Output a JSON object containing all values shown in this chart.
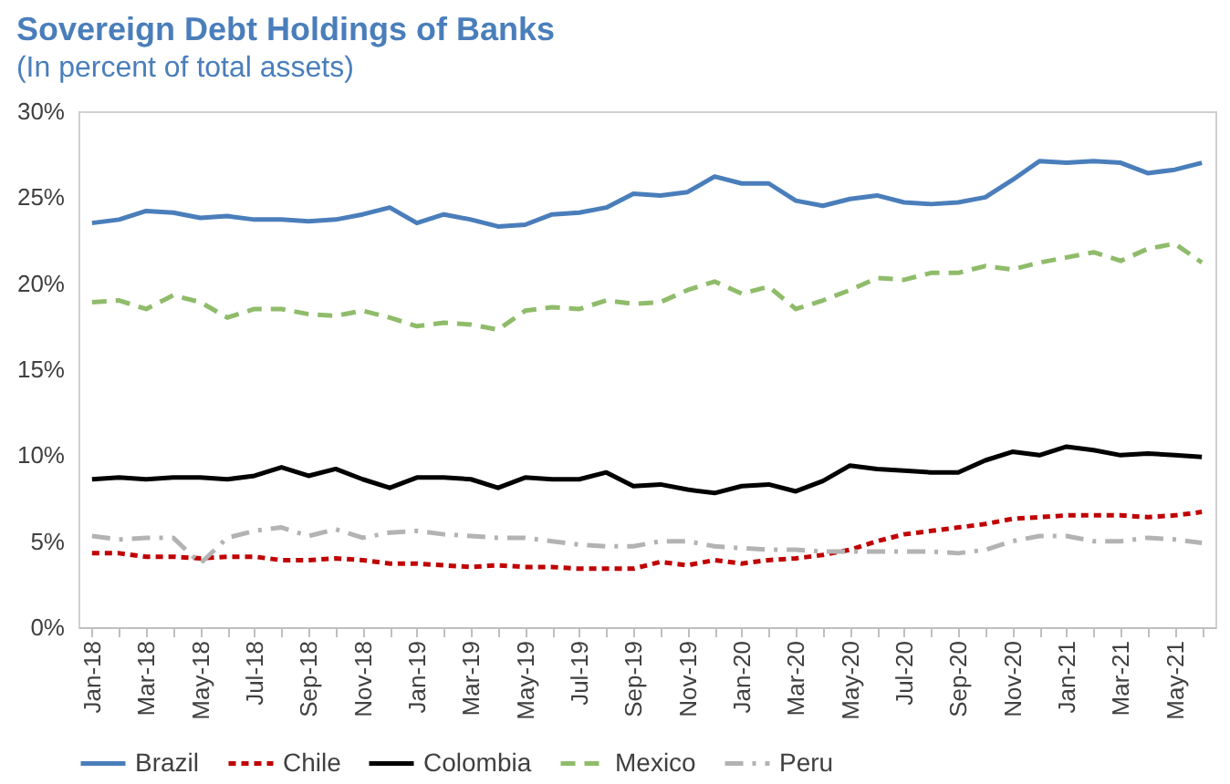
{
  "chart_data": {
    "type": "line",
    "title": "Sovereign Debt Holdings of Banks",
    "subtitle": "(In percent of total assets)",
    "categories": [
      "Jan-18",
      null,
      "Mar-18",
      null,
      "May-18",
      null,
      "Jul-18",
      null,
      "Sep-18",
      null,
      "Nov-18",
      null,
      "Jan-19",
      null,
      "Mar-19",
      null,
      "May-19",
      null,
      "Jul-19",
      null,
      "Sep-19",
      null,
      "Nov-19",
      null,
      "Jan-20",
      null,
      "Mar-20",
      null,
      "May-20",
      null,
      "Jul-20",
      null,
      "Sep-20",
      null,
      "Nov-20",
      null,
      "Jan-21",
      null,
      "Mar-21",
      null,
      "May-21",
      null
    ],
    "ylim": [
      0,
      30
    ],
    "yticks": [
      {
        "value": 0,
        "label": "0%"
      },
      {
        "value": 5,
        "label": "5%"
      },
      {
        "value": 10,
        "label": "10%"
      },
      {
        "value": 15,
        "label": "15%"
      },
      {
        "value": 20,
        "label": "20%"
      },
      {
        "value": 25,
        "label": "25%"
      },
      {
        "value": 30,
        "label": "30%"
      }
    ],
    "grid": false,
    "legend": "bottom",
    "series": [
      {
        "name": "Brazil",
        "color": "#4a7ebb",
        "line_style": "solid",
        "values": [
          23.5,
          23.7,
          24.2,
          24.1,
          23.8,
          23.9,
          23.7,
          23.7,
          23.6,
          23.7,
          24.0,
          24.4,
          23.5,
          24.0,
          23.7,
          23.3,
          23.4,
          24.0,
          24.1,
          24.4,
          25.2,
          25.1,
          25.3,
          26.2,
          25.8,
          25.8,
          24.8,
          24.5,
          24.9,
          25.1,
          24.7,
          24.6,
          24.7,
          25.0,
          26.0,
          27.1,
          27.0,
          27.1,
          27.0,
          26.4,
          26.6,
          27.0
        ]
      },
      {
        "name": "Chile",
        "color": "#c00000",
        "line_style": "dotted",
        "values": [
          4.3,
          4.3,
          4.1,
          4.1,
          4.0,
          4.1,
          4.1,
          3.9,
          3.9,
          4.0,
          3.9,
          3.7,
          3.7,
          3.6,
          3.5,
          3.6,
          3.5,
          3.5,
          3.4,
          3.4,
          3.4,
          3.8,
          3.6,
          3.9,
          3.7,
          3.9,
          4.0,
          4.2,
          4.5,
          5.0,
          5.4,
          5.6,
          5.8,
          6.0,
          6.3,
          6.4,
          6.5,
          6.5,
          6.5,
          6.4,
          6.5,
          6.7
        ]
      },
      {
        "name": "Colombia",
        "color": "#000000",
        "line_style": "solid",
        "values": [
          8.6,
          8.7,
          8.6,
          8.7,
          8.7,
          8.6,
          8.8,
          9.3,
          8.8,
          9.2,
          8.6,
          8.1,
          8.7,
          8.7,
          8.6,
          8.1,
          8.7,
          8.6,
          8.6,
          9.0,
          8.2,
          8.3,
          8.0,
          7.8,
          8.2,
          8.3,
          7.9,
          8.5,
          9.4,
          9.2,
          9.1,
          9.0,
          9.0,
          9.7,
          10.2,
          10.0,
          10.5,
          10.3,
          10.0,
          10.1,
          10.0,
          9.9
        ]
      },
      {
        "name": "Mexico",
        "color": "#8fbc6a",
        "line_style": "dashed",
        "values": [
          18.9,
          19.0,
          18.5,
          19.3,
          18.9,
          18.0,
          18.5,
          18.5,
          18.2,
          18.1,
          18.4,
          18.0,
          17.5,
          17.7,
          17.6,
          17.3,
          18.4,
          18.6,
          18.5,
          19.0,
          18.8,
          18.9,
          19.6,
          20.1,
          19.4,
          19.8,
          18.5,
          19.0,
          19.6,
          20.3,
          20.2,
          20.6,
          20.6,
          21.0,
          20.8,
          21.2,
          21.5,
          21.8,
          21.3,
          22.0,
          22.3,
          21.2
        ]
      },
      {
        "name": "Peru",
        "color": "#b3b3b3",
        "line_style": "dashdot",
        "values": [
          5.3,
          5.1,
          5.2,
          5.2,
          3.7,
          5.2,
          5.6,
          5.8,
          5.3,
          5.7,
          5.2,
          5.5,
          5.6,
          5.4,
          5.3,
          5.2,
          5.2,
          5.0,
          4.8,
          4.7,
          4.7,
          5.0,
          5.0,
          4.7,
          4.6,
          4.5,
          4.5,
          4.4,
          4.4,
          4.4,
          4.4,
          4.4,
          4.3,
          4.5,
          5.0,
          5.3,
          5.3,
          5.0,
          5.0,
          5.2,
          5.1,
          4.9
        ]
      }
    ]
  }
}
